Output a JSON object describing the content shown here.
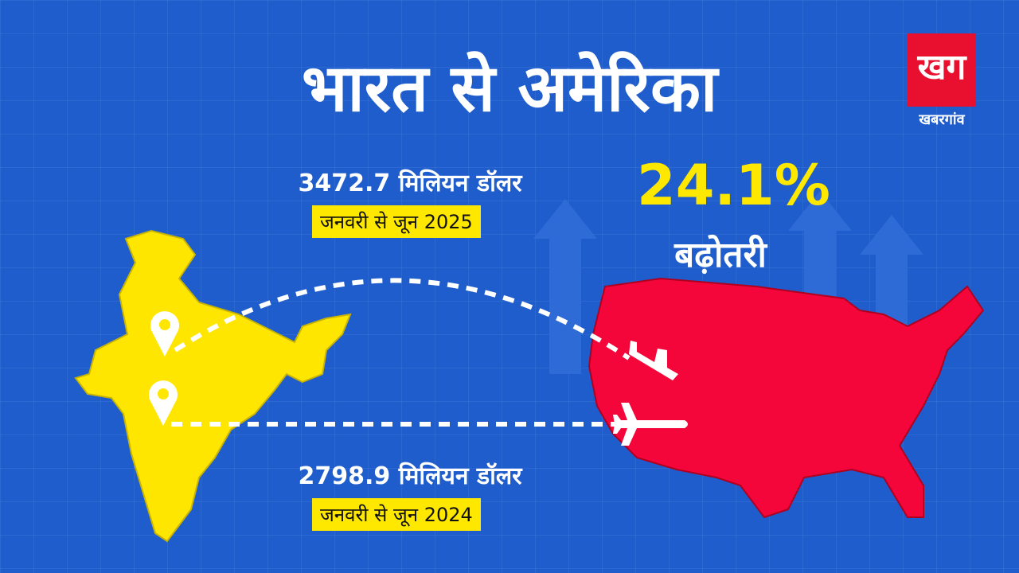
{
  "header": {
    "title": "भारत से अमेरिका"
  },
  "logo": {
    "mark": "खग",
    "name": "खबरगांव"
  },
  "current": {
    "amount": "3472.7 मिलियन डॉलर",
    "period": "जनवरी से जून 2025"
  },
  "growth": {
    "percent": "24.1%",
    "label": "बढ़ोतरी"
  },
  "previous": {
    "amount": "2798.9 मिलियन डॉलर",
    "period": "जनवरी से जून 2024"
  }
}
